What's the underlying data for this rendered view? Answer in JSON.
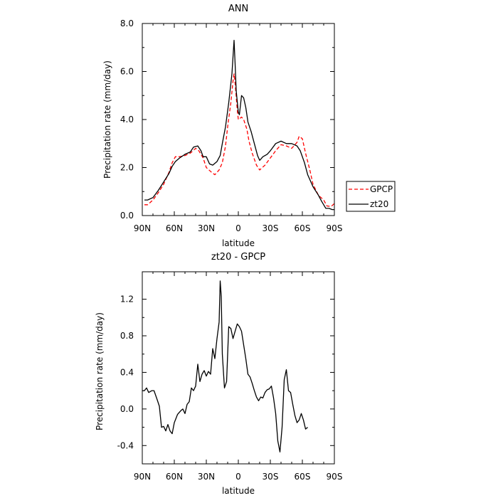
{
  "chart_data": [
    {
      "type": "line",
      "title": "ANN",
      "xlabel": "latitude",
      "ylabel": "Precipitation rate (mm/day)",
      "xlim": [
        90,
        -90
      ],
      "ylim": [
        0,
        8
      ],
      "x_ticks": [
        90,
        60,
        30,
        0,
        -30,
        -60,
        -90
      ],
      "x_tick_labels": [
        "90N",
        "60N",
        "30N",
        "0",
        "30S",
        "60S",
        "90S"
      ],
      "y_ticks": [
        0,
        2,
        4,
        6,
        8
      ],
      "y_tick_labels": [
        "0.0",
        "2.0",
        "4.0",
        "6.0",
        "8.0"
      ],
      "legend_position": "right",
      "series": [
        {
          "name": "GPCP",
          "color": "#ff0000",
          "dash": "dashed",
          "points": [
            [
              88,
              0.45
            ],
            [
              85,
              0.45
            ],
            [
              80,
              0.65
            ],
            [
              75,
              0.95
            ],
            [
              70,
              1.3
            ],
            [
              65,
              1.8
            ],
            [
              62,
              2.2
            ],
            [
              59,
              2.45
            ],
            [
              55,
              2.45
            ],
            [
              50,
              2.5
            ],
            [
              45,
              2.6
            ],
            [
              40,
              2.8
            ],
            [
              37,
              2.7
            ],
            [
              33,
              2.4
            ],
            [
              30,
              2.0
            ],
            [
              25,
              1.8
            ],
            [
              22,
              1.7
            ],
            [
              18,
              1.9
            ],
            [
              15,
              2.2
            ],
            [
              12,
              2.9
            ],
            [
              10,
              3.7
            ],
            [
              7,
              4.7
            ],
            [
              5,
              5.6
            ],
            [
              4,
              5.9
            ],
            [
              3,
              5.5
            ],
            [
              1,
              4.4
            ],
            [
              0,
              4.0
            ],
            [
              -3,
              4.1
            ],
            [
              -5,
              4.0
            ],
            [
              -8,
              3.6
            ],
            [
              -10,
              3.1
            ],
            [
              -13,
              2.6
            ],
            [
              -17,
              2.1
            ],
            [
              -20,
              1.9
            ],
            [
              -25,
              2.1
            ],
            [
              -30,
              2.4
            ],
            [
              -35,
              2.7
            ],
            [
              -40,
              2.95
            ],
            [
              -45,
              2.9
            ],
            [
              -50,
              2.8
            ],
            [
              -55,
              3.05
            ],
            [
              -57,
              3.3
            ],
            [
              -60,
              3.2
            ],
            [
              -63,
              2.6
            ],
            [
              -67,
              1.9
            ],
            [
              -70,
              1.3
            ],
            [
              -75,
              0.85
            ],
            [
              -80,
              0.65
            ],
            [
              -83,
              0.4
            ],
            [
              -87,
              0.38
            ],
            [
              -90,
              0.5
            ]
          ]
        },
        {
          "name": "zt20",
          "color": "#000000",
          "dash": "solid",
          "points": [
            [
              88,
              0.65
            ],
            [
              85,
              0.65
            ],
            [
              80,
              0.75
            ],
            [
              75,
              1.05
            ],
            [
              70,
              1.4
            ],
            [
              65,
              1.75
            ],
            [
              62,
              2.05
            ],
            [
              59,
              2.25
            ],
            [
              55,
              2.4
            ],
            [
              50,
              2.55
            ],
            [
              45,
              2.65
            ],
            [
              42,
              2.85
            ],
            [
              38,
              2.9
            ],
            [
              35,
              2.7
            ],
            [
              33,
              2.45
            ],
            [
              30,
              2.45
            ],
            [
              27,
              2.15
            ],
            [
              24,
              2.1
            ],
            [
              20,
              2.25
            ],
            [
              17,
              2.5
            ],
            [
              15,
              3.0
            ],
            [
              12,
              3.7
            ],
            [
              9,
              4.7
            ],
            [
              6,
              5.9
            ],
            [
              4,
              7.3
            ],
            [
              3,
              6.3
            ],
            [
              2,
              5.2
            ],
            [
              0,
              4.3
            ],
            [
              -1,
              4.2
            ],
            [
              -3,
              5.0
            ],
            [
              -5,
              4.9
            ],
            [
              -7,
              4.5
            ],
            [
              -9,
              3.9
            ],
            [
              -12,
              3.5
            ],
            [
              -15,
              3.0
            ],
            [
              -18,
              2.5
            ],
            [
              -20,
              2.3
            ],
            [
              -23,
              2.45
            ],
            [
              -27,
              2.55
            ],
            [
              -30,
              2.7
            ],
            [
              -35,
              3.0
            ],
            [
              -40,
              3.1
            ],
            [
              -45,
              3.0
            ],
            [
              -50,
              3.0
            ],
            [
              -55,
              2.9
            ],
            [
              -58,
              2.7
            ],
            [
              -62,
              2.2
            ],
            [
              -65,
              1.7
            ],
            [
              -70,
              1.2
            ],
            [
              -75,
              0.85
            ],
            [
              -78,
              0.6
            ],
            [
              -82,
              0.3
            ],
            [
              -85,
              0.3
            ],
            [
              -88,
              0.25
            ],
            [
              -90,
              0.25
            ]
          ]
        }
      ]
    },
    {
      "type": "line",
      "title": "zt20 - GPCP",
      "xlabel": "latitude",
      "ylabel": "Precipitation rate (mm/day)",
      "xlim": [
        90,
        -90
      ],
      "ylim": [
        -0.6,
        1.5
      ],
      "x_ticks": [
        90,
        60,
        30,
        0,
        -30,
        -60,
        -90
      ],
      "x_tick_labels": [
        "90N",
        "60N",
        "30N",
        "0",
        "30S",
        "60S",
        "90S"
      ],
      "y_ticks": [
        -0.4,
        0,
        0.4,
        0.8,
        1.2
      ],
      "y_tick_labels": [
        "-0.4",
        "0.0",
        "0.4",
        "0.8",
        "1.2"
      ],
      "series": [
        {
          "color": "#000000",
          "dash": "solid",
          "points": [
            [
              90,
              0.2
            ],
            [
              88,
              0.2
            ],
            [
              86,
              0.23
            ],
            [
              84,
              0.18
            ],
            [
              81,
              0.2
            ],
            [
              79,
              0.2
            ],
            [
              76,
              0.1
            ],
            [
              74,
              0.03
            ],
            [
              72,
              -0.2
            ],
            [
              70,
              -0.19
            ],
            [
              68,
              -0.24
            ],
            [
              66,
              -0.17
            ],
            [
              64,
              -0.24
            ],
            [
              62,
              -0.27
            ],
            [
              60,
              -0.15
            ],
            [
              57,
              -0.06
            ],
            [
              54,
              -0.02
            ],
            [
              52,
              0.0
            ],
            [
              50,
              -0.05
            ],
            [
              48,
              0.05
            ],
            [
              46,
              0.08
            ],
            [
              44,
              0.23
            ],
            [
              42,
              0.2
            ],
            [
              40,
              0.25
            ],
            [
              38,
              0.49
            ],
            [
              36,
              0.3
            ],
            [
              34,
              0.38
            ],
            [
              32,
              0.42
            ],
            [
              30,
              0.36
            ],
            [
              28,
              0.41
            ],
            [
              26,
              0.38
            ],
            [
              24,
              0.66
            ],
            [
              22,
              0.55
            ],
            [
              20,
              0.77
            ],
            [
              18,
              0.95
            ],
            [
              17,
              1.4
            ],
            [
              16,
              1.23
            ],
            [
              15,
              0.6
            ],
            [
              13,
              0.23
            ],
            [
              11,
              0.3
            ],
            [
              9,
              0.9
            ],
            [
              7,
              0.88
            ],
            [
              5,
              0.77
            ],
            [
              3,
              0.85
            ],
            [
              1,
              0.93
            ],
            [
              -1,
              0.9
            ],
            [
              -3,
              0.85
            ],
            [
              -5,
              0.7
            ],
            [
              -7,
              0.55
            ],
            [
              -9,
              0.38
            ],
            [
              -11,
              0.35
            ],
            [
              -13,
              0.28
            ],
            [
              -15,
              0.2
            ],
            [
              -17,
              0.13
            ],
            [
              -19,
              0.09
            ],
            [
              -21,
              0.13
            ],
            [
              -23,
              0.12
            ],
            [
              -25,
              0.18
            ],
            [
              -27,
              0.21
            ],
            [
              -29,
              0.22
            ],
            [
              -31,
              0.25
            ],
            [
              -33,
              0.12
            ],
            [
              -35,
              -0.05
            ],
            [
              -37,
              -0.35
            ],
            [
              -39,
              -0.47
            ],
            [
              -41,
              -0.2
            ],
            [
              -43,
              0.32
            ],
            [
              -45,
              0.43
            ],
            [
              -47,
              0.2
            ],
            [
              -49,
              0.18
            ],
            [
              -51,
              0.05
            ],
            [
              -53,
              -0.07
            ],
            [
              -55,
              -0.15
            ],
            [
              -57,
              -0.12
            ],
            [
              -59,
              -0.05
            ],
            [
              -61,
              -0.12
            ],
            [
              -63,
              -0.22
            ],
            [
              -65,
              -0.2
            ]
          ]
        }
      ]
    }
  ]
}
